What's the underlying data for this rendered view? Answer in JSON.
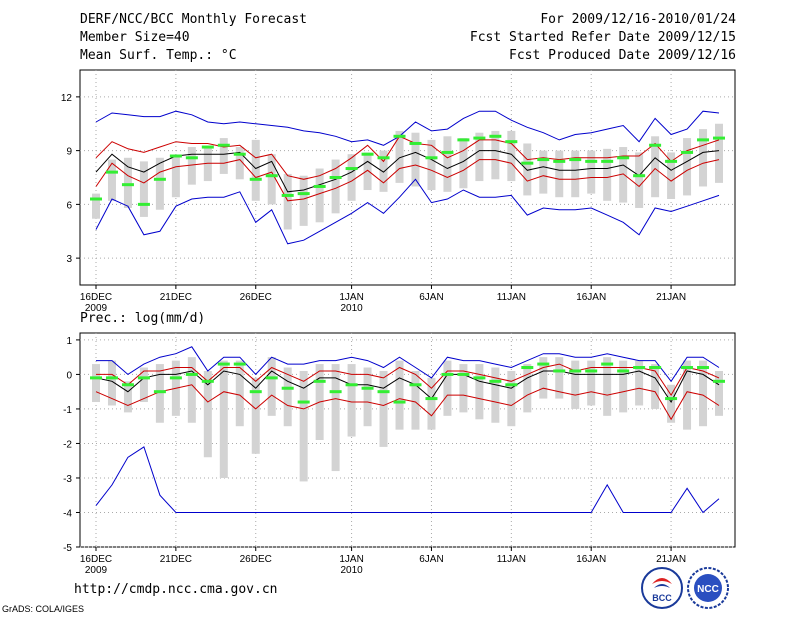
{
  "header": {
    "title": "DERF/NCC/BCC Monthly Forecast",
    "member_size": "Member Size=40",
    "period": "For 2009/12/16-2010/01/24",
    "started": "Fcst Started Refer Date 2009/12/15",
    "produced": "Fcst Produced Date 2009/12/16"
  },
  "footer": {
    "url": "http://cmdp.ncc.cma.gov.cn",
    "grads": "GrADS: COLA/IGES",
    "logo_bcc": "BCC",
    "logo_ncc": "NCC"
  },
  "colors": {
    "median_line": "#000000",
    "quartile_lines": "#cc0000",
    "extreme_lines": "#0000cc",
    "box": "#d3d3d3",
    "mean_marker": "#33ee33",
    "grid": "#aaaaaa"
  },
  "chart_data": [
    {
      "type": "box",
      "id": "temperature",
      "title": "Mean Surf. Temp.: °C",
      "days": 40,
      "ylim": [
        1.5,
        13.5
      ],
      "yticks": [
        3,
        6,
        9,
        12
      ],
      "ytick_labels": [
        "3",
        "6",
        "9",
        "12"
      ],
      "xticks": [
        {
          "day": 1,
          "label": "16DEC",
          "sub": "2009"
        },
        {
          "day": 6,
          "label": "21DEC",
          "sub": ""
        },
        {
          "day": 11,
          "label": "26DEC",
          "sub": ""
        },
        {
          "day": 17,
          "label": "1JAN",
          "sub": "2010"
        },
        {
          "day": 22,
          "label": "6JAN",
          "sub": ""
        },
        {
          "day": 27,
          "label": "11JAN",
          "sub": ""
        },
        {
          "day": 32,
          "label": "16JAN",
          "sub": ""
        },
        {
          "day": 37,
          "label": "21JAN",
          "sub": ""
        }
      ],
      "series": [
        {
          "name": "max",
          "values": [
            10.6,
            11.1,
            11.0,
            10.9,
            10.9,
            11.2,
            11.0,
            10.6,
            10.5,
            10.6,
            10.5,
            10.4,
            10.3,
            10.1,
            10.0,
            9.8,
            9.5,
            9.6,
            9.3,
            9.8,
            10.6,
            10.1,
            10.2,
            10.8,
            11.2,
            11.2,
            10.7,
            10.3,
            10.0,
            9.6,
            9.9,
            10.0,
            10.2,
            10.4,
            9.5,
            10.8,
            9.9,
            10.2,
            11.2,
            11.1
          ]
        },
        {
          "name": "q75",
          "values": [
            8.6,
            9.5,
            9.1,
            8.9,
            9.2,
            9.5,
            9.4,
            9.4,
            9.2,
            9.3,
            8.6,
            8.8,
            7.6,
            7.4,
            7.6,
            8.0,
            8.6,
            9.3,
            8.4,
            9.8,
            9.4,
            9.3,
            8.6,
            9.0,
            9.6,
            9.6,
            9.4,
            8.5,
            8.6,
            8.5,
            8.6,
            8.6,
            8.6,
            8.7,
            8.7,
            9.4,
            8.4,
            9.0,
            9.3,
            9.6
          ]
        },
        {
          "name": "median",
          "values": [
            7.8,
            8.8,
            8.1,
            7.8,
            8.3,
            8.7,
            8.8,
            8.8,
            8.8,
            8.9,
            8.0,
            8.4,
            6.7,
            6.8,
            7.1,
            7.4,
            7.8,
            8.4,
            7.8,
            8.6,
            8.9,
            8.5,
            8.0,
            8.4,
            9.0,
            9.0,
            8.8,
            7.9,
            8.1,
            7.9,
            7.9,
            8.0,
            8.0,
            8.2,
            7.6,
            8.6,
            7.9,
            8.4,
            8.9,
            9.0
          ]
        },
        {
          "name": "q25",
          "values": [
            7.0,
            8.3,
            7.6,
            7.2,
            7.8,
            8.1,
            8.2,
            8.3,
            8.3,
            8.5,
            7.5,
            7.8,
            6.2,
            6.3,
            6.6,
            6.9,
            7.3,
            7.9,
            7.2,
            8.0,
            8.2,
            7.9,
            7.5,
            7.9,
            8.5,
            8.5,
            8.3,
            7.3,
            7.6,
            7.4,
            7.4,
            7.5,
            7.5,
            7.7,
            7.0,
            8.0,
            7.3,
            7.9,
            8.3,
            8.5
          ]
        },
        {
          "name": "min",
          "values": [
            4.6,
            6.3,
            5.9,
            4.3,
            4.5,
            5.9,
            6.3,
            6.4,
            6.4,
            6.7,
            5.0,
            5.7,
            3.8,
            4.0,
            4.5,
            5.0,
            5.5,
            6.1,
            5.5,
            6.4,
            7.4,
            6.1,
            6.3,
            6.8,
            6.4,
            6.4,
            6.5,
            5.4,
            5.8,
            5.7,
            5.7,
            5.8,
            5.4,
            5.0,
            4.3,
            5.8,
            5.6,
            5.9,
            6.2,
            6.5
          ]
        },
        {
          "name": "box_top",
          "values": [
            6.6,
            8.5,
            8.6,
            8.4,
            8.6,
            8.7,
            9.2,
            9.2,
            9.7,
            9.2,
            9.6,
            8.8,
            7.7,
            7.6,
            8.0,
            8.5,
            8.8,
            8.9,
            9.0,
            10.1,
            10.0,
            9.6,
            9.8,
            9.7,
            10.0,
            10.1,
            10.1,
            9.4,
            9.0,
            9.0,
            9.0,
            9.0,
            9.1,
            9.2,
            8.9,
            9.8,
            8.9,
            9.7,
            10.2,
            10.5
          ]
        },
        {
          "name": "box_bottom",
          "values": [
            5.2,
            6.2,
            5.8,
            5.3,
            5.7,
            6.4,
            7.1,
            7.3,
            7.7,
            7.4,
            6.2,
            6.0,
            4.6,
            4.8,
            5.0,
            5.5,
            6.2,
            6.8,
            6.7,
            7.2,
            7.0,
            6.8,
            6.7,
            6.9,
            7.3,
            7.4,
            7.3,
            6.5,
            6.6,
            6.4,
            6.4,
            6.6,
            6.2,
            6.1,
            5.8,
            6.4,
            6.3,
            6.5,
            7.0,
            7.2
          ]
        },
        {
          "name": "mean",
          "values": [
            6.3,
            7.8,
            7.1,
            6.0,
            7.4,
            8.7,
            8.6,
            9.2,
            9.3,
            8.8,
            7.4,
            7.6,
            6.5,
            6.6,
            7.0,
            7.5,
            8.0,
            8.8,
            8.6,
            9.8,
            9.4,
            8.6,
            8.9,
            9.6,
            9.7,
            9.8,
            9.5,
            8.3,
            8.5,
            8.4,
            8.5,
            8.4,
            8.4,
            8.6,
            7.6,
            9.3,
            8.4,
            8.9,
            9.6,
            9.7
          ]
        }
      ]
    },
    {
      "type": "box",
      "id": "precipitation",
      "title": "Prec.: log(mm/d)",
      "days": 40,
      "ylim": [
        -5,
        1.2
      ],
      "yticks": [
        -5,
        -4,
        -3,
        -2,
        -1,
        0,
        1
      ],
      "ytick_labels": [
        "-5",
        "-4",
        "-3",
        "-2",
        "-1",
        "0",
        "1"
      ],
      "xticks": [
        {
          "day": 1,
          "label": "16DEC",
          "sub": "2009"
        },
        {
          "day": 6,
          "label": "21DEC",
          "sub": ""
        },
        {
          "day": 11,
          "label": "26DEC",
          "sub": ""
        },
        {
          "day": 17,
          "label": "1JAN",
          "sub": "2010"
        },
        {
          "day": 22,
          "label": "6JAN",
          "sub": ""
        },
        {
          "day": 27,
          "label": "11JAN",
          "sub": ""
        },
        {
          "day": 32,
          "label": "16JAN",
          "sub": ""
        },
        {
          "day": 37,
          "label": "21JAN",
          "sub": ""
        }
      ],
      "series": [
        {
          "name": "max",
          "values": [
            0.4,
            0.4,
            0.0,
            0.3,
            0.5,
            0.6,
            0.8,
            0.1,
            0.5,
            0.5,
            0.0,
            0.5,
            0.3,
            0.3,
            0.4,
            0.4,
            0.5,
            0.4,
            0.2,
            0.5,
            0.2,
            -0.1,
            0.5,
            0.4,
            0.4,
            0.3,
            0.2,
            0.4,
            0.6,
            0.6,
            0.5,
            0.5,
            0.6,
            0.5,
            0.4,
            0.4,
            -0.2,
            0.5,
            0.5,
            0.2
          ]
        },
        {
          "name": "q75",
          "values": [
            0.0,
            0.0,
            -0.3,
            0.1,
            0.1,
            0.2,
            0.2,
            -0.2,
            0.2,
            0.2,
            -0.2,
            0.2,
            0.0,
            -0.2,
            0.1,
            0.1,
            0.0,
            0.0,
            -0.1,
            0.2,
            0.0,
            -0.4,
            0.1,
            0.1,
            0.0,
            -0.1,
            -0.2,
            0.0,
            0.2,
            0.3,
            0.1,
            0.2,
            0.2,
            0.2,
            0.2,
            0.1,
            -0.6,
            0.2,
            0.1,
            -0.1
          ]
        },
        {
          "name": "median",
          "values": [
            -0.1,
            -0.2,
            -0.5,
            -0.1,
            0.0,
            0.0,
            0.1,
            -0.3,
            0.1,
            0.0,
            -0.4,
            0.1,
            -0.2,
            -0.4,
            -0.1,
            -0.1,
            -0.3,
            -0.3,
            -0.4,
            -0.1,
            -0.3,
            -0.7,
            0.0,
            0.0,
            -0.2,
            -0.3,
            -0.4,
            -0.1,
            0.1,
            0.1,
            0.0,
            0.0,
            0.0,
            0.0,
            0.1,
            -0.1,
            -0.8,
            0.1,
            0.0,
            -0.3
          ]
        },
        {
          "name": "q25",
          "values": [
            -0.5,
            -0.7,
            -0.9,
            -0.7,
            -0.5,
            -0.4,
            -0.3,
            -0.8,
            -0.5,
            -0.6,
            -1.0,
            -0.6,
            -0.9,
            -1.0,
            -0.8,
            -0.7,
            -0.8,
            -0.8,
            -0.9,
            -0.7,
            -0.8,
            -1.2,
            -0.6,
            -0.6,
            -0.7,
            -0.8,
            -0.9,
            -0.6,
            -0.4,
            -0.5,
            -0.6,
            -0.5,
            -0.6,
            -0.5,
            -0.4,
            -0.5,
            -1.3,
            -0.5,
            -0.6,
            -0.9
          ]
        },
        {
          "name": "min",
          "values": [
            -3.8,
            -3.2,
            -2.4,
            -2.1,
            -3.5,
            -4.0,
            -4.0,
            -4.0,
            -4.0,
            -4.0,
            -4.0,
            -4.0,
            -4.0,
            -4.0,
            -4.0,
            -4.0,
            -4.0,
            -4.0,
            -4.0,
            -4.0,
            -4.0,
            -4.0,
            -4.0,
            -4.0,
            -4.0,
            -4.0,
            -4.0,
            -4.0,
            -4.0,
            -4.0,
            -4.0,
            -4.0,
            -3.2,
            -4.0,
            -4.0,
            -4.0,
            -4.0,
            -3.3,
            -4.0,
            -3.6
          ]
        },
        {
          "name": "box_top",
          "values": [
            0.3,
            0.4,
            -0.2,
            0.2,
            0.3,
            0.4,
            0.5,
            0.1,
            0.4,
            0.4,
            -0.1,
            0.5,
            0.2,
            0.1,
            0.3,
            0.3,
            0.3,
            0.2,
            0.1,
            0.4,
            0.1,
            -0.1,
            0.4,
            0.3,
            0.3,
            0.2,
            0.1,
            0.3,
            0.5,
            0.5,
            0.4,
            0.4,
            0.5,
            0.4,
            0.4,
            0.3,
            -0.3,
            0.4,
            0.4,
            0.1
          ]
        },
        {
          "name": "box_bottom",
          "values": [
            -0.8,
            -0.9,
            -1.1,
            -0.8,
            -1.4,
            -1.2,
            -1.4,
            -2.4,
            -3.0,
            -1.5,
            -2.3,
            -1.2,
            -1.5,
            -3.1,
            -1.9,
            -2.8,
            -1.8,
            -1.5,
            -2.1,
            -1.6,
            -1.6,
            -1.6,
            -1.2,
            -1.1,
            -1.3,
            -1.4,
            -1.5,
            -1.1,
            -0.7,
            -0.7,
            -1.0,
            -0.9,
            -1.2,
            -1.1,
            -0.9,
            -1.0,
            -1.4,
            -1.6,
            -1.5,
            -1.2
          ]
        },
        {
          "name": "mean",
          "values": [
            -0.1,
            -0.1,
            -0.3,
            -0.1,
            -0.5,
            -0.1,
            0.0,
            -0.2,
            0.3,
            0.3,
            -0.5,
            -0.1,
            -0.4,
            -0.8,
            -0.2,
            -0.5,
            -0.3,
            -0.4,
            -0.5,
            -0.8,
            -0.3,
            -0.7,
            0.0,
            0.0,
            -0.1,
            -0.2,
            -0.3,
            0.2,
            0.3,
            0.1,
            0.1,
            0.1,
            0.3,
            0.1,
            0.2,
            0.2,
            -0.7,
            0.2,
            0.2,
            -0.2
          ]
        }
      ]
    }
  ]
}
